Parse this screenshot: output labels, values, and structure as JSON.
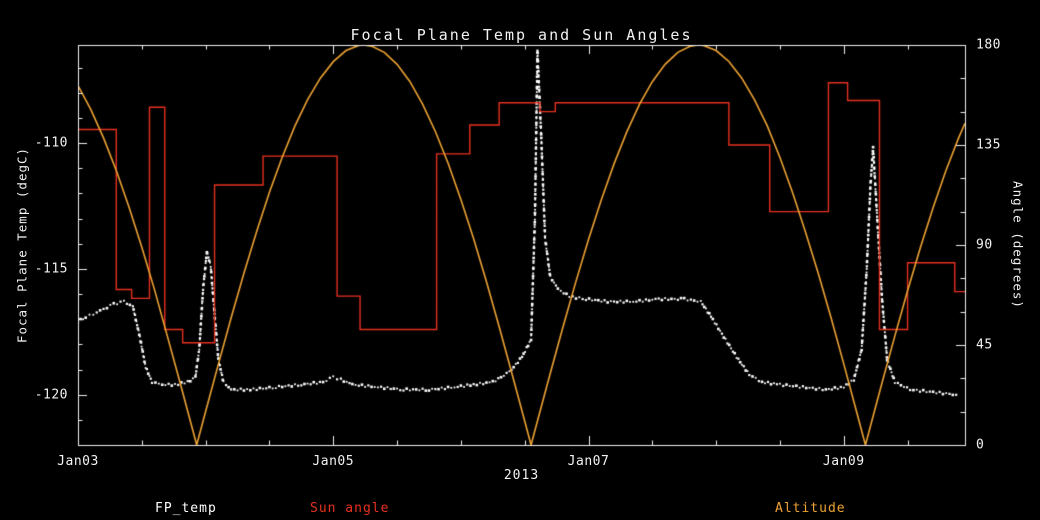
{
  "legend": {
    "items": [
      {
        "label": "FP_temp",
        "color": "#ffffff"
      },
      {
        "label": "Sun angle",
        "color": "#e6301e"
      },
      {
        "label": "Altitude",
        "color": "#eda233"
      }
    ]
  },
  "chart_data": {
    "type": "line",
    "title": "Focal Plane Temp and Sun Angles",
    "xlabel": "2013",
    "ylabel_left": "Focal Plane Temp (degC)",
    "ylabel_right": "Angle (degrees)",
    "background_color": "#000000",
    "axis_color": "#f2f2f2",
    "grid": false,
    "legend_position": "bottom",
    "x_axis": {
      "min": 3.0,
      "max": 9.95,
      "minor_step": 0.5,
      "ticks": [
        {
          "v": 3,
          "label": "Jan03"
        },
        {
          "v": 5,
          "label": "Jan05"
        },
        {
          "v": 7,
          "label": "Jan07"
        },
        {
          "v": 9,
          "label": "Jan09"
        }
      ]
    },
    "y_left": {
      "min": -122.0,
      "max": -106.1,
      "minor_step": 1,
      "ticks": [
        {
          "v": -110,
          "label": "-110"
        },
        {
          "v": -115,
          "label": "-115"
        },
        {
          "v": -120,
          "label": "-120"
        }
      ]
    },
    "y_right": {
      "min": 0,
      "max": 180,
      "minor_step": 15,
      "ticks": [
        {
          "v": 0,
          "label": "0"
        },
        {
          "v": 45,
          "label": "45"
        },
        {
          "v": 90,
          "label": "90"
        },
        {
          "v": 135,
          "label": "135"
        },
        {
          "v": 180,
          "label": "180"
        }
      ]
    },
    "series": [
      {
        "name": "FP_temp",
        "color": "#ffffff",
        "axis": "left",
        "render": "scatter",
        "points": [
          [
            3.0,
            -117.1
          ],
          [
            3.06,
            -116.9
          ],
          [
            3.12,
            -116.8
          ],
          [
            3.2,
            -116.6
          ],
          [
            3.28,
            -116.4
          ],
          [
            3.36,
            -116.3
          ],
          [
            3.43,
            -116.5
          ],
          [
            3.48,
            -117.6
          ],
          [
            3.53,
            -118.9
          ],
          [
            3.58,
            -119.5
          ],
          [
            3.66,
            -119.6
          ],
          [
            3.76,
            -119.6
          ],
          [
            3.86,
            -119.5
          ],
          [
            3.92,
            -119.3
          ],
          [
            3.95,
            -118.2
          ],
          [
            3.98,
            -115.8
          ],
          [
            4.01,
            -114.3
          ],
          [
            4.04,
            -114.9
          ],
          [
            4.07,
            -116.8
          ],
          [
            4.1,
            -118.6
          ],
          [
            4.14,
            -119.5
          ],
          [
            4.2,
            -119.8
          ],
          [
            4.35,
            -119.8
          ],
          [
            4.55,
            -119.7
          ],
          [
            4.75,
            -119.6
          ],
          [
            4.92,
            -119.5
          ],
          [
            5.0,
            -119.3
          ],
          [
            5.06,
            -119.4
          ],
          [
            5.15,
            -119.6
          ],
          [
            5.35,
            -119.7
          ],
          [
            5.55,
            -119.8
          ],
          [
            5.75,
            -119.8
          ],
          [
            5.95,
            -119.7
          ],
          [
            6.1,
            -119.6
          ],
          [
            6.25,
            -119.5
          ],
          [
            6.38,
            -119.1
          ],
          [
            6.48,
            -118.5
          ],
          [
            6.55,
            -117.8
          ],
          [
            6.58,
            -113.0
          ],
          [
            6.6,
            -106.3
          ],
          [
            6.63,
            -109.8
          ],
          [
            6.66,
            -113.8
          ],
          [
            6.7,
            -115.3
          ],
          [
            6.76,
            -115.8
          ],
          [
            6.85,
            -116.1
          ],
          [
            6.98,
            -116.2
          ],
          [
            7.15,
            -116.3
          ],
          [
            7.35,
            -116.3
          ],
          [
            7.55,
            -116.2
          ],
          [
            7.75,
            -116.2
          ],
          [
            7.88,
            -116.3
          ],
          [
            7.96,
            -116.9
          ],
          [
            8.06,
            -117.7
          ],
          [
            8.16,
            -118.5
          ],
          [
            8.26,
            -119.2
          ],
          [
            8.36,
            -119.5
          ],
          [
            8.5,
            -119.6
          ],
          [
            8.68,
            -119.7
          ],
          [
            8.86,
            -119.8
          ],
          [
            9.0,
            -119.7
          ],
          [
            9.08,
            -119.4
          ],
          [
            9.14,
            -118.2
          ],
          [
            9.18,
            -115.0
          ],
          [
            9.21,
            -111.6
          ],
          [
            9.23,
            -110.2
          ],
          [
            9.26,
            -112.8
          ],
          [
            9.3,
            -116.2
          ],
          [
            9.34,
            -118.6
          ],
          [
            9.4,
            -119.5
          ],
          [
            9.52,
            -119.8
          ],
          [
            9.7,
            -119.9
          ],
          [
            9.88,
            -120.0
          ]
        ]
      },
      {
        "name": "Sun angle",
        "color": "#e6301e",
        "axis": "right",
        "render": "step",
        "points": [
          [
            3.0,
            142
          ],
          [
            3.3,
            70
          ],
          [
            3.42,
            66
          ],
          [
            3.56,
            152
          ],
          [
            3.68,
            52
          ],
          [
            3.82,
            46
          ],
          [
            4.07,
            117
          ],
          [
            4.45,
            130
          ],
          [
            5.03,
            67
          ],
          [
            5.21,
            52
          ],
          [
            5.81,
            131
          ],
          [
            6.07,
            144
          ],
          [
            6.3,
            154
          ],
          [
            6.62,
            150
          ],
          [
            6.74,
            154
          ],
          [
            8.1,
            135
          ],
          [
            8.42,
            105
          ],
          [
            8.88,
            163
          ],
          [
            9.03,
            155
          ],
          [
            9.28,
            52
          ],
          [
            9.5,
            82
          ],
          [
            9.87,
            69
          ]
        ]
      },
      {
        "name": "Altitude",
        "color": "#eda233",
        "axis": "right",
        "render": "line",
        "points": [
          [
            3.0,
            161.7
          ],
          [
            3.1,
            151.0
          ],
          [
            3.2,
            138.2
          ],
          [
            3.3,
            123.5
          ],
          [
            3.4,
            107.0
          ],
          [
            3.5,
            89.0
          ],
          [
            3.6,
            69.8
          ],
          [
            3.7,
            49.0
          ],
          [
            3.8,
            28.0
          ],
          [
            3.9,
            6.5
          ],
          [
            3.93,
            0
          ],
          [
            4.0,
            15.1
          ],
          [
            4.1,
            36.4
          ],
          [
            4.2,
            57.3
          ],
          [
            4.3,
            77.3
          ],
          [
            4.4,
            96.1
          ],
          [
            4.5,
            113.7
          ],
          [
            4.6,
            129.5
          ],
          [
            4.7,
            143.6
          ],
          [
            4.8,
            155.5
          ],
          [
            4.9,
            165.2
          ],
          [
            5.0,
            172.5
          ],
          [
            5.1,
            177.5
          ],
          [
            5.2,
            179.8
          ],
          [
            5.24,
            180
          ],
          [
            5.3,
            179.5
          ],
          [
            5.4,
            176.7
          ],
          [
            5.5,
            171.3
          ],
          [
            5.6,
            163.6
          ],
          [
            5.7,
            153.4
          ],
          [
            5.8,
            141.1
          ],
          [
            5.9,
            126.8
          ],
          [
            6.0,
            110.5
          ],
          [
            6.1,
            92.8
          ],
          [
            6.2,
            73.6
          ],
          [
            6.3,
            53.2
          ],
          [
            6.4,
            32.2
          ],
          [
            6.5,
            10.8
          ],
          [
            6.55,
            0
          ],
          [
            6.6,
            10.8
          ],
          [
            6.7,
            32.2
          ],
          [
            6.8,
            53.1
          ],
          [
            6.9,
            73.3
          ],
          [
            7.0,
            92.5
          ],
          [
            7.1,
            110.3
          ],
          [
            7.2,
            126.5
          ],
          [
            7.3,
            140.9
          ],
          [
            7.4,
            153.4
          ],
          [
            7.5,
            163.5
          ],
          [
            7.6,
            171.3
          ],
          [
            7.7,
            176.7
          ],
          [
            7.8,
            179.5
          ],
          [
            7.86,
            180
          ],
          [
            7.9,
            179.8
          ],
          [
            8.0,
            177.5
          ],
          [
            8.1,
            172.6
          ],
          [
            8.2,
            165.2
          ],
          [
            8.3,
            155.4
          ],
          [
            8.4,
            143.7
          ],
          [
            8.5,
            129.4
          ],
          [
            8.6,
            113.4
          ],
          [
            8.7,
            95.9
          ],
          [
            8.8,
            77.3
          ],
          [
            8.9,
            57.4
          ],
          [
            9.0,
            36.5
          ],
          [
            9.1,
            15.1
          ],
          [
            9.17,
            0
          ],
          [
            9.2,
            6.5
          ],
          [
            9.3,
            28.0
          ],
          [
            9.4,
            49.0
          ],
          [
            9.5,
            69.4
          ],
          [
            9.6,
            88.8
          ],
          [
            9.7,
            106.8
          ],
          [
            9.8,
            123.4
          ],
          [
            9.9,
            138.2
          ],
          [
            9.95,
            144.8
          ]
        ]
      }
    ]
  }
}
